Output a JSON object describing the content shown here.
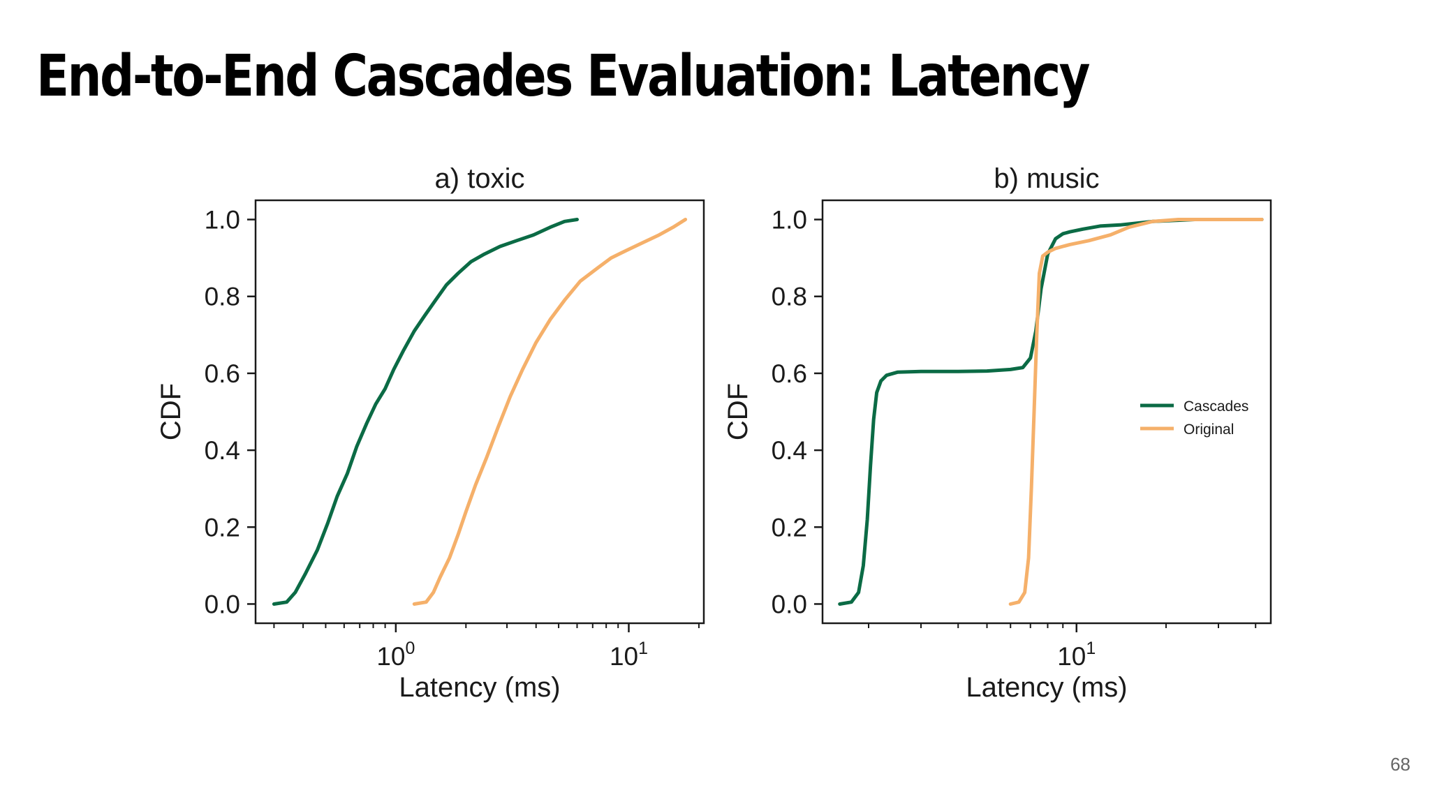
{
  "slide": {
    "title": "End-to-End Cascades Evaluation: Latency",
    "page_number": "68"
  },
  "chart_data": [
    {
      "type": "line",
      "title": "a) toxic",
      "xlabel": "Latency (ms)",
      "ylabel": "CDF",
      "x_scale": "log",
      "xlim": [
        0.25,
        21
      ],
      "ylim": [
        -0.05,
        1.05
      ],
      "x_ticks": [
        {
          "value": 1,
          "base": "10",
          "exp": "0"
        },
        {
          "value": 10,
          "base": "10",
          "exp": "1"
        }
      ],
      "y_ticks": [
        "0.0",
        "0.2",
        "0.4",
        "0.6",
        "0.8",
        "1.0"
      ],
      "grid": false,
      "legend": null,
      "series": [
        {
          "color": "#0b6b45",
          "x": [
            0.3,
            0.34,
            0.37,
            0.41,
            0.46,
            0.51,
            0.56,
            0.62,
            0.68,
            0.75,
            0.82,
            0.9,
            0.98,
            1.08,
            1.2,
            1.33,
            1.48,
            1.65,
            1.85,
            2.1,
            2.4,
            2.8,
            3.3,
            3.9,
            4.6,
            5.3,
            6.0
          ],
          "y": [
            0.0,
            0.005,
            0.03,
            0.08,
            0.14,
            0.21,
            0.28,
            0.34,
            0.41,
            0.47,
            0.52,
            0.56,
            0.61,
            0.66,
            0.71,
            0.75,
            0.79,
            0.83,
            0.86,
            0.89,
            0.91,
            0.93,
            0.945,
            0.96,
            0.98,
            0.995,
            1.0
          ]
        },
        {
          "color": "#f5b06a",
          "x": [
            1.2,
            1.35,
            1.45,
            1.55,
            1.7,
            1.85,
            2.0,
            2.2,
            2.45,
            2.75,
            3.1,
            3.5,
            4.0,
            4.6,
            5.3,
            6.2,
            7.2,
            8.4,
            9.8,
            11.5,
            13.5,
            15.5,
            17.5
          ],
          "y": [
            0.0,
            0.005,
            0.03,
            0.07,
            0.12,
            0.18,
            0.24,
            0.31,
            0.38,
            0.46,
            0.54,
            0.61,
            0.68,
            0.74,
            0.79,
            0.84,
            0.87,
            0.9,
            0.92,
            0.94,
            0.96,
            0.98,
            1.0
          ]
        }
      ]
    },
    {
      "type": "line",
      "title": "b) music",
      "xlabel": "Latency (ms)",
      "ylabel": "CDF",
      "x_scale": "log",
      "xlim": [
        1.4,
        45
      ],
      "ylim": [
        -0.05,
        1.05
      ],
      "x_ticks": [
        {
          "value": 10,
          "base": "10",
          "exp": "1"
        }
      ],
      "y_ticks": [
        "0.0",
        "0.2",
        "0.4",
        "0.6",
        "0.8",
        "1.0"
      ],
      "grid": false,
      "legend": {
        "position": "center-right",
        "entries": [
          "Cascades",
          "Original"
        ]
      },
      "series": [
        {
          "name": "Cascades",
          "color": "#0b6b45",
          "x": [
            1.6,
            1.75,
            1.85,
            1.92,
            1.98,
            2.03,
            2.08,
            2.13,
            2.2,
            2.3,
            2.5,
            3.0,
            4.0,
            5.0,
            6.0,
            6.6,
            7.0,
            7.3,
            7.6,
            8.0,
            8.5,
            9.0,
            9.5,
            10.5,
            12.0,
            14.0,
            18.0,
            25.0,
            35.0,
            42.0
          ],
          "y": [
            0.0,
            0.005,
            0.03,
            0.1,
            0.22,
            0.36,
            0.48,
            0.55,
            0.58,
            0.595,
            0.603,
            0.605,
            0.605,
            0.606,
            0.61,
            0.615,
            0.64,
            0.71,
            0.82,
            0.91,
            0.95,
            0.963,
            0.968,
            0.975,
            0.983,
            0.986,
            0.995,
            1.0,
            1.0,
            1.0
          ]
        },
        {
          "name": "Original",
          "color": "#f5b06a",
          "x": [
            6.0,
            6.4,
            6.7,
            6.9,
            7.05,
            7.2,
            7.35,
            7.5,
            7.7,
            8.0,
            8.5,
            9.5,
            11.0,
            13.0,
            15.0,
            18.0,
            22.0,
            30.0,
            42.0
          ],
          "y": [
            0.0,
            0.005,
            0.03,
            0.12,
            0.3,
            0.5,
            0.7,
            0.86,
            0.905,
            0.915,
            0.925,
            0.935,
            0.945,
            0.96,
            0.98,
            0.995,
            1.0,
            1.0,
            1.0
          ]
        }
      ]
    }
  ]
}
